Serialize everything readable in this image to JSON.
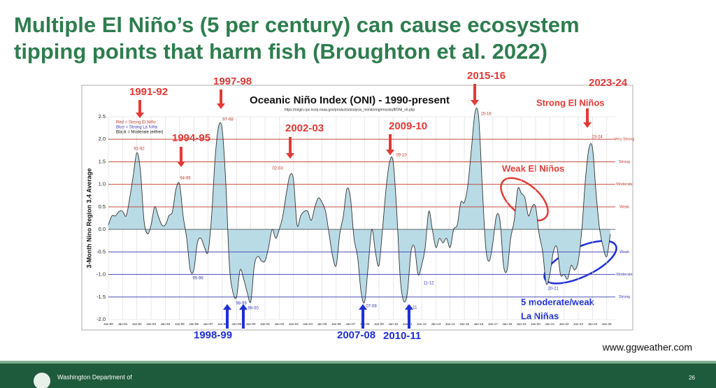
{
  "slide_title_lines": [
    "Multiple El Niño’s (5 per century) can cause ecosystem",
    "tipping points that harm fish (Broughton et al. 2022)"
  ],
  "source": "www.ggweather.com",
  "footer": {
    "org": "Washington Department of",
    "page": "26"
  },
  "el_nino_events": [
    "1991-92",
    "1994-95",
    "1997-98",
    "2002-03",
    "2009-10",
    "2015-16",
    "2023-24"
  ],
  "la_nina_events": [
    "1998-99",
    "2007-08",
    "2010-11"
  ],
  "callouts": {
    "strong": "Strong El Niños",
    "weak": "Weak El Niños",
    "la_nina_1": "5 moderate/weak",
    "la_nina_2": "La Niñas"
  },
  "chart_data": {
    "type": "area",
    "title": "Oceanic Niño Index (ONI) - 1990-present",
    "subtitle": "https://origin.cpc.ncep.noaa.gov/products/analysis_monitoring/ensostuff/ONI_v5.php",
    "y_label": "3-Month Nino Region 3.4 Average",
    "legend_text": [
      "Red = Strong  El Niño",
      "Blue = Strong La Niña",
      "Black = Moderate (either)"
    ],
    "color": "#b9dbe6",
    "line_color": "#333333",
    "x": [
      1990,
      1990.25,
      1990.5,
      1990.75,
      1991,
      1991.25,
      1991.5,
      1991.75,
      1992,
      1992.25,
      1992.5,
      1992.75,
      1993,
      1993.25,
      1993.5,
      1993.75,
      1994,
      1994.25,
      1994.5,
      1994.75,
      1995,
      1995.25,
      1995.5,
      1995.75,
      1996,
      1996.25,
      1996.5,
      1996.75,
      1997,
      1997.25,
      1997.5,
      1997.75,
      1998,
      1998.25,
      1998.5,
      1998.75,
      1999,
      1999.25,
      1999.5,
      1999.75,
      2000,
      2000.25,
      2000.5,
      2000.75,
      2001,
      2001.25,
      2001.5,
      2001.75,
      2002,
      2002.25,
      2002.5,
      2002.75,
      2003,
      2003.25,
      2003.5,
      2003.75,
      2004,
      2004.25,
      2004.5,
      2004.75,
      2005,
      2005.25,
      2005.5,
      2005.75,
      2006,
      2006.25,
      2006.5,
      2006.75,
      2007,
      2007.25,
      2007.5,
      2007.75,
      2008,
      2008.25,
      2008.5,
      2008.75,
      2009,
      2009.25,
      2009.5,
      2009.75,
      2010,
      2010.25,
      2010.5,
      2010.75,
      2011,
      2011.25,
      2011.5,
      2011.75,
      2012,
      2012.25,
      2012.5,
      2012.75,
      2013,
      2013.25,
      2013.5,
      2013.75,
      2014,
      2014.25,
      2014.5,
      2014.75,
      2015,
      2015.25,
      2015.5,
      2015.75,
      2016,
      2016.25,
      2016.5,
      2016.75,
      2017,
      2017.25,
      2017.5,
      2017.75,
      2018,
      2018.25,
      2018.5,
      2018.75,
      2019,
      2019.25,
      2019.5,
      2019.75,
      2020,
      2020.25,
      2020.5,
      2020.75,
      2021,
      2021.25,
      2021.5,
      2021.75,
      2022,
      2022.25,
      2022.5,
      2022.75,
      2023,
      2023.25,
      2023.5,
      2023.75,
      2024,
      2024.25,
      2024.5,
      2024.75,
      2025,
      2025.25
    ],
    "values": [
      0.1,
      0.3,
      0.3,
      0.4,
      0.4,
      0.3,
      0.7,
      1.2,
      1.7,
      1.3,
      0.2,
      -0.1,
      0.1,
      0.5,
      0.3,
      0.1,
      0.1,
      0.3,
      0.4,
      0.9,
      1.0,
      0.3,
      -0.2,
      -0.9,
      -0.9,
      -0.3,
      -0.2,
      -0.4,
      -0.5,
      0.3,
      1.6,
      2.3,
      2.2,
      1.0,
      -0.8,
      -1.4,
      -1.5,
      -0.9,
      -1.1,
      -1.4,
      -1.6,
      -0.8,
      -0.6,
      -0.7,
      -0.7,
      -0.4,
      0.0,
      -0.2,
      0.0,
      0.3,
      0.8,
      1.2,
      1.1,
      0.1,
      0.3,
      0.4,
      0.4,
      0.2,
      0.5,
      0.7,
      0.6,
      0.4,
      -0.1,
      -0.6,
      -0.8,
      -0.1,
      0.3,
      0.9,
      0.7,
      -0.2,
      -0.6,
      -1.4,
      -1.6,
      -0.8,
      0.0,
      -0.5,
      -0.8,
      0.0,
      0.9,
      1.5,
      1.5,
      0.4,
      -1.1,
      -1.6,
      -1.4,
      -0.5,
      -0.4,
      -1.0,
      -0.8,
      -0.4,
      0.4,
      0.0,
      -0.4,
      -0.2,
      -0.3,
      -0.2,
      -0.4,
      0.0,
      0.1,
      0.6,
      0.6,
      1.0,
      1.8,
      2.6,
      2.5,
      1.0,
      -0.4,
      -0.7,
      -0.3,
      0.3,
      0.2,
      -0.8,
      -0.9,
      -0.2,
      0.2,
      0.9,
      0.8,
      0.7,
      0.3,
      0.5,
      0.5,
      -0.1,
      -0.5,
      -1.2,
      -1.0,
      -0.5,
      -0.4,
      -1.0,
      -1.0,
      -1.1,
      -0.8,
      -0.9,
      -0.7,
      0.0,
      1.1,
      1.8,
      1.8,
      0.8,
      0.0,
      -0.4,
      -0.6,
      -0.1
    ],
    "xlim": [
      1990,
      2025.6
    ],
    "xticks": [
      {
        "value": 1990,
        "label": "Jan-90"
      },
      {
        "value": 1991,
        "label": "Jan-91"
      },
      {
        "value": 1992,
        "label": "Jan-92"
      },
      {
        "value": 1993,
        "label": "Jan-93"
      },
      {
        "value": 1994,
        "label": "Jan-94"
      },
      {
        "value": 1995,
        "label": "Jan-95"
      },
      {
        "value": 1996,
        "label": "Jan-96"
      },
      {
        "value": 1997,
        "label": "Jan-97"
      },
      {
        "value": 1998,
        "label": "Jan-98"
      },
      {
        "value": 1999,
        "label": "Jan-99"
      },
      {
        "value": 2000,
        "label": "Jan-00"
      },
      {
        "value": 2001,
        "label": "Jan-01"
      },
      {
        "value": 2002,
        "label": "Jan-02"
      },
      {
        "value": 2003,
        "label": "Jan-03"
      },
      {
        "value": 2004,
        "label": "Jan-04"
      },
      {
        "value": 2005,
        "label": "Jan-05"
      },
      {
        "value": 2006,
        "label": "Jan-06"
      },
      {
        "value": 2007,
        "label": "Jan-07"
      },
      {
        "value": 2008,
        "label": "Jan-08"
      },
      {
        "value": 2009,
        "label": "Jan-09"
      },
      {
        "value": 2010,
        "label": "Jan-10"
      },
      {
        "value": 2011,
        "label": "Jan-11"
      },
      {
        "value": 2012,
        "label": "Jan-12"
      },
      {
        "value": 2013,
        "label": "Jan-13"
      },
      {
        "value": 2014,
        "label": "Jan-14"
      },
      {
        "value": 2015,
        "label": "Jan-15"
      },
      {
        "value": 2016,
        "label": "Jan-16"
      },
      {
        "value": 2017,
        "label": "Jan-17"
      },
      {
        "value": 2018,
        "label": "Jan-18"
      },
      {
        "value": 2019,
        "label": "Jan-19"
      },
      {
        "value": 2020,
        "label": "Jan-20"
      },
      {
        "value": 2021,
        "label": "Jan-21"
      },
      {
        "value": 2022,
        "label": "Jan-22"
      },
      {
        "value": 2023,
        "label": "Jan-23"
      },
      {
        "value": 2024,
        "label": "Jan-24"
      },
      {
        "value": 2025,
        "label": "Jan-25"
      }
    ],
    "ylim": [
      -2,
      2.5
    ],
    "yticks": [
      {
        "value": -2,
        "label": "-2.0"
      },
      {
        "value": -1.5,
        "label": "-1.5"
      },
      {
        "value": -1,
        "label": "-1.0"
      },
      {
        "value": -0.5,
        "label": "-0.5"
      },
      {
        "value": 0,
        "label": "0.0"
      },
      {
        "value": 0.5,
        "label": "0.5"
      },
      {
        "value": 1,
        "label": "1.0"
      },
      {
        "value": 1.5,
        "label": "1.5"
      },
      {
        "value": 2,
        "label": "2.0"
      },
      {
        "value": 2.5,
        "label": "2.5"
      }
    ],
    "grid": true,
    "thresholds": [
      {
        "value": 2,
        "label": "Very Strong",
        "color": "#c0392b"
      },
      {
        "value": 1.5,
        "label": "Strong",
        "color": "#c0392b"
      },
      {
        "value": 1,
        "label": "Moderate",
        "color": "#c0392b"
      },
      {
        "value": 0.5,
        "label": "Weak",
        "color": "#c0392b"
      },
      {
        "value": -0.5,
        "label": "Weak",
        "color": "#3b3bb8"
      },
      {
        "value": -1,
        "label": "Moderate",
        "color": "#3b3bb8"
      },
      {
        "value": -1.5,
        "label": "Strong",
        "color": "#3b3bb8"
      }
    ],
    "peak_labels": [
      "91-92",
      "94-95",
      "97-98",
      "02-03",
      "09-10",
      "15-16",
      "23-24",
      "95-96",
      "98-99",
      "99-00",
      "07-08",
      "10-11",
      "11-12",
      "20-21"
    ]
  }
}
